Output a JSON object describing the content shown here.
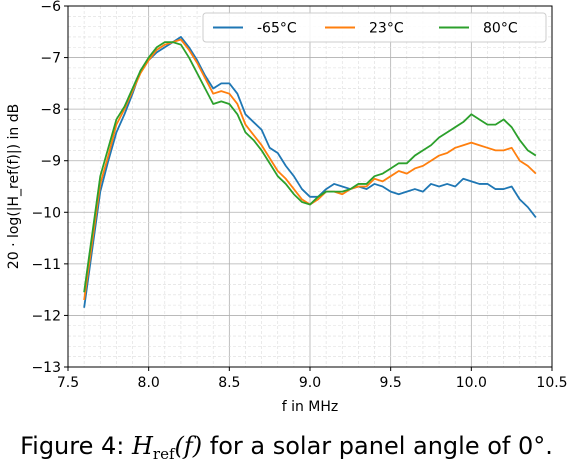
{
  "chart_data": {
    "type": "line",
    "title": "",
    "xlabel": "f in MHz",
    "ylabel": "20 · log(|H_ref(f)|) in dB",
    "xlim": [
      7.5,
      10.5
    ],
    "ylim": [
      -13,
      -6
    ],
    "xticks": [
      7.5,
      8.0,
      8.5,
      9.0,
      9.5,
      10.0,
      10.5
    ],
    "xtick_labels": [
      "7.5",
      "8.0",
      "8.5",
      "9.0",
      "9.5",
      "10.0",
      "10.5"
    ],
    "yticks": [
      -13,
      -12,
      -11,
      -10,
      -9,
      -8,
      -7,
      -6
    ],
    "ytick_labels": [
      "−13",
      "−12",
      "−11",
      "−10",
      "−9",
      "−8",
      "−7",
      "−6"
    ],
    "grid": "major and minor, dashed",
    "legend_position": "top-right",
    "series": [
      {
        "name": "-65°C",
        "color": "#1f77b4",
        "x": [
          7.6,
          7.7,
          7.75,
          7.8,
          7.85,
          7.9,
          7.95,
          8.0,
          8.05,
          8.1,
          8.15,
          8.2,
          8.25,
          8.3,
          8.35,
          8.4,
          8.45,
          8.5,
          8.55,
          8.6,
          8.65,
          8.7,
          8.75,
          8.8,
          8.85,
          8.9,
          8.95,
          9.0,
          9.05,
          9.1,
          9.15,
          9.2,
          9.25,
          9.3,
          9.35,
          9.4,
          9.45,
          9.5,
          9.55,
          9.6,
          9.65,
          9.7,
          9.75,
          9.8,
          9.85,
          9.9,
          9.95,
          10.0,
          10.05,
          10.1,
          10.15,
          10.2,
          10.25,
          10.3,
          10.35,
          10.4
        ],
        "y": [
          -11.85,
          -9.6,
          -9.0,
          -8.45,
          -8.1,
          -7.7,
          -7.25,
          -7.05,
          -6.9,
          -6.8,
          -6.7,
          -6.6,
          -6.8,
          -7.05,
          -7.35,
          -7.6,
          -7.5,
          -7.5,
          -7.7,
          -8.1,
          -8.25,
          -8.4,
          -8.75,
          -8.85,
          -9.1,
          -9.3,
          -9.55,
          -9.7,
          -9.7,
          -9.55,
          -9.45,
          -9.5,
          -9.55,
          -9.5,
          -9.55,
          -9.45,
          -9.5,
          -9.6,
          -9.65,
          -9.6,
          -9.55,
          -9.6,
          -9.45,
          -9.5,
          -9.45,
          -9.5,
          -9.35,
          -9.4,
          -9.45,
          -9.45,
          -9.55,
          -9.55,
          -9.5,
          -9.75,
          -9.9,
          -10.1
        ]
      },
      {
        "name": "23°C",
        "color": "#ff7f0e",
        "x": [
          7.6,
          7.7,
          7.75,
          7.8,
          7.85,
          7.9,
          7.95,
          8.0,
          8.05,
          8.1,
          8.15,
          8.2,
          8.25,
          8.3,
          8.35,
          8.4,
          8.45,
          8.5,
          8.55,
          8.6,
          8.65,
          8.7,
          8.75,
          8.8,
          8.85,
          8.9,
          8.95,
          9.0,
          9.05,
          9.1,
          9.15,
          9.2,
          9.25,
          9.3,
          9.35,
          9.4,
          9.45,
          9.5,
          9.55,
          9.6,
          9.65,
          9.7,
          9.75,
          9.8,
          9.85,
          9.9,
          9.95,
          10.0,
          10.05,
          10.1,
          10.15,
          10.2,
          10.25,
          10.3,
          10.35,
          10.4
        ],
        "y": [
          -11.7,
          -9.45,
          -8.9,
          -8.3,
          -8.0,
          -7.65,
          -7.3,
          -7.05,
          -6.85,
          -6.75,
          -6.7,
          -6.65,
          -6.85,
          -7.1,
          -7.4,
          -7.7,
          -7.65,
          -7.7,
          -7.9,
          -8.3,
          -8.5,
          -8.7,
          -8.95,
          -9.2,
          -9.35,
          -9.55,
          -9.75,
          -9.85,
          -9.75,
          -9.6,
          -9.6,
          -9.65,
          -9.55,
          -9.5,
          -9.5,
          -9.35,
          -9.4,
          -9.3,
          -9.2,
          -9.25,
          -9.15,
          -9.1,
          -9.0,
          -8.9,
          -8.85,
          -8.75,
          -8.7,
          -8.65,
          -8.7,
          -8.75,
          -8.8,
          -8.8,
          -8.75,
          -9.0,
          -9.1,
          -9.25
        ]
      },
      {
        "name": "80°C",
        "color": "#2ca02c",
        "x": [
          7.6,
          7.7,
          7.75,
          7.8,
          7.85,
          7.9,
          7.95,
          8.0,
          8.05,
          8.1,
          8.15,
          8.2,
          8.25,
          8.3,
          8.35,
          8.4,
          8.45,
          8.5,
          8.55,
          8.6,
          8.65,
          8.7,
          8.75,
          8.8,
          8.85,
          8.9,
          8.95,
          9.0,
          9.05,
          9.1,
          9.15,
          9.2,
          9.25,
          9.3,
          9.35,
          9.4,
          9.45,
          9.5,
          9.55,
          9.6,
          9.65,
          9.7,
          9.75,
          9.8,
          9.85,
          9.9,
          9.95,
          10.0,
          10.05,
          10.1,
          10.15,
          10.2,
          10.25,
          10.3,
          10.35,
          10.4
        ],
        "y": [
          -11.55,
          -9.3,
          -8.75,
          -8.2,
          -7.95,
          -7.6,
          -7.25,
          -7.0,
          -6.8,
          -6.7,
          -6.7,
          -6.75,
          -7.0,
          -7.3,
          -7.6,
          -7.9,
          -7.85,
          -7.9,
          -8.1,
          -8.45,
          -8.6,
          -8.8,
          -9.05,
          -9.3,
          -9.45,
          -9.65,
          -9.8,
          -9.85,
          -9.7,
          -9.6,
          -9.6,
          -9.6,
          -9.55,
          -9.45,
          -9.45,
          -9.3,
          -9.25,
          -9.15,
          -9.05,
          -9.05,
          -8.9,
          -8.8,
          -8.7,
          -8.55,
          -8.45,
          -8.35,
          -8.25,
          -8.1,
          -8.2,
          -8.3,
          -8.3,
          -8.2,
          -8.35,
          -8.6,
          -8.8,
          -8.9
        ]
      }
    ]
  },
  "caption": {
    "prefix": "Figure 4: ",
    "math_H": "H",
    "math_sub": "ref",
    "math_arg": "(f)",
    "suffix": " for a solar panel angle of 0°."
  }
}
